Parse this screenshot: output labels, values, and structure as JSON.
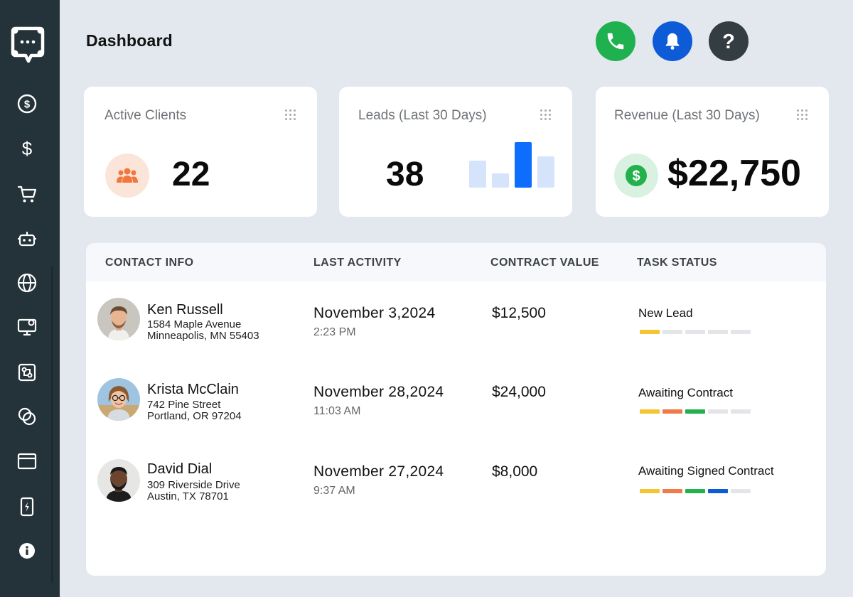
{
  "header": {
    "title": "Dashboard"
  },
  "colors": {
    "sidebar_bg": "#243239",
    "phone_green": "#1fb14f",
    "bell_blue": "#0d5bd6",
    "help_dark": "#343d43",
    "status_yellow": "#f5c531",
    "status_orange": "#f07a4a",
    "status_green": "#22b14c",
    "status_blue": "#0d5bd6",
    "status_empty": "#e3e5e8"
  },
  "sidebar": {
    "items": [
      {
        "icon": "dollar-circle-icon"
      },
      {
        "icon": "dollar-icon"
      },
      {
        "icon": "cart-icon"
      },
      {
        "icon": "robot-icon"
      },
      {
        "icon": "globe-icon"
      },
      {
        "icon": "monitor-icon"
      },
      {
        "icon": "workflow-icon"
      },
      {
        "icon": "overlap-icon"
      },
      {
        "icon": "browser-icon"
      },
      {
        "icon": "bolt-icon"
      },
      {
        "icon": "info-icon"
      }
    ]
  },
  "stats": {
    "clients": {
      "label": "Active Clients",
      "value": "22"
    },
    "leads": {
      "label": "Leads (Last 30 Days)",
      "value": "38",
      "bars": [
        0.6,
        0.32,
        1.0,
        0.68
      ]
    },
    "revenue": {
      "label": "Revenue (Last 30 Days)",
      "value": "$22,750"
    }
  },
  "table": {
    "headers": [
      "CONTACT INFO",
      "LAST ACTIVITY",
      "CONTRACT VALUE",
      "TASK STATUS"
    ],
    "rows": [
      {
        "name": "Ken Russell",
        "addr1": "1584 Maple Avenue",
        "addr2": "Minneapolis, MN 55403",
        "date": "November 3,2024",
        "time": "2:23 PM",
        "value": "$12,500",
        "status": "New Lead",
        "progress": 1
      },
      {
        "name": "Krista McClain",
        "addr1": "742 Pine Street",
        "addr2": "Portland, OR 97204",
        "date": "November 28,2024",
        "time": "11:03 AM",
        "value": "$24,000",
        "status": "Awaiting Contract",
        "progress": 3
      },
      {
        "name": "David Dial",
        "addr1": "309 Riverside Drive",
        "addr2": "Austin, TX 78701",
        "date": "November 27,2024",
        "time": "9:37 AM",
        "value": "$8,000",
        "status": "Awaiting Signed Contract",
        "progress": 4
      }
    ]
  }
}
